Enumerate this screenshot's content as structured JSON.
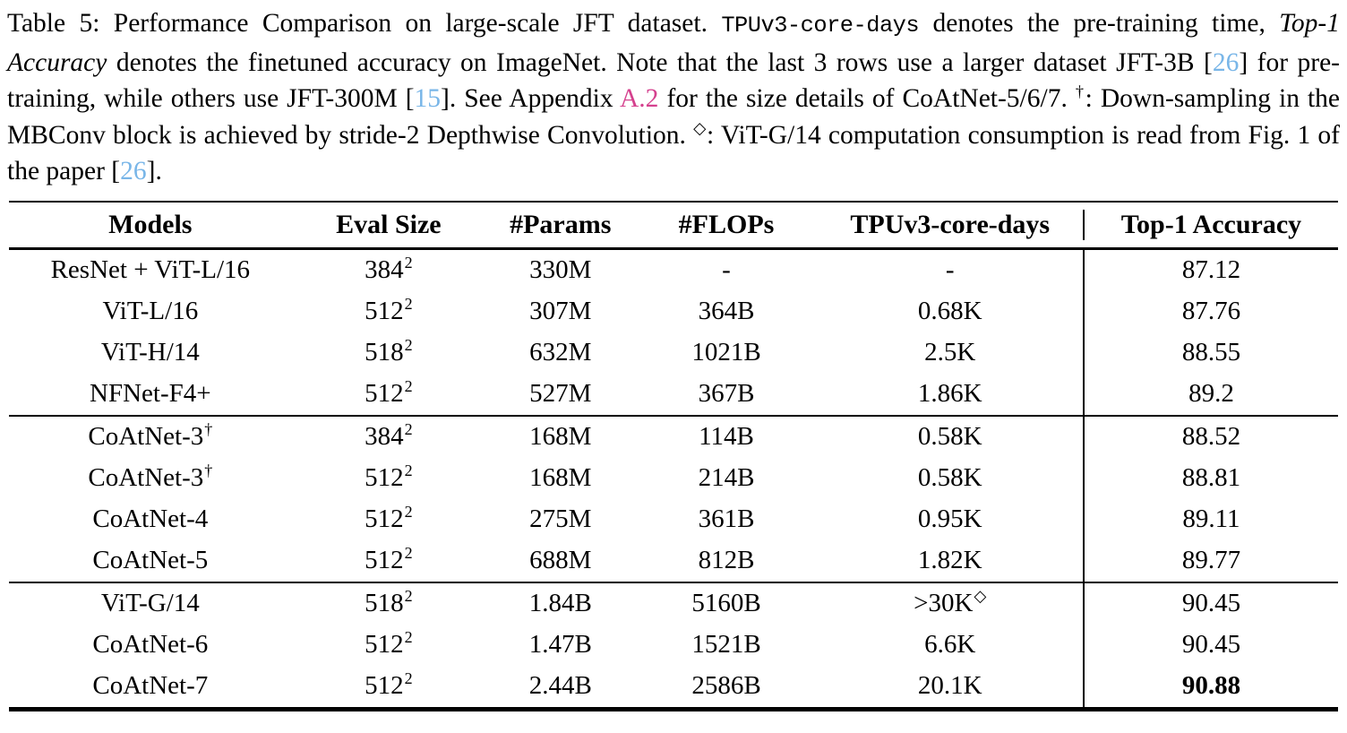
{
  "colors": {
    "link_blue": "#79b6e8",
    "link_pink": "#d5418e",
    "text": "#000000",
    "background": "#ffffff",
    "rule": "#000000"
  },
  "caption": {
    "segments": [
      {
        "t": "Table 5: Performance Comparison on large-scale JFT dataset. ",
        "s": "normal"
      },
      {
        "t": "TPUv3-core-days",
        "s": "mono"
      },
      {
        "t": " denotes the pre-training time, ",
        "s": "normal"
      },
      {
        "t": "Top-1 Accuracy",
        "s": "italic"
      },
      {
        "t": " denotes the finetuned accuracy on ImageNet. Note that the last 3 rows use a larger dataset JFT-3B [",
        "s": "normal"
      },
      {
        "t": "26",
        "s": "link-blue"
      },
      {
        "t": "] for pre-training, while others use JFT-300M [",
        "s": "normal"
      },
      {
        "t": "15",
        "s": "link-blue"
      },
      {
        "t": "]. See Appendix ",
        "s": "normal"
      },
      {
        "t": "A.2",
        "s": "link-pink"
      },
      {
        "t": " for the size details of CoAtNet-5/6/7. ",
        "s": "normal"
      },
      {
        "t": "†",
        "s": "sup"
      },
      {
        "t": ": Down-sampling in the MBConv block is achieved by stride-2 Depthwise Convolution. ",
        "s": "normal"
      },
      {
        "t": "◇",
        "s": "sup"
      },
      {
        "t": ": ViT-G/14 computation consumption is read from Fig. 1 of the paper [",
        "s": "normal"
      },
      {
        "t": "26",
        "s": "link-blue"
      },
      {
        "t": "].",
        "s": "normal"
      }
    ]
  },
  "table": {
    "headers": [
      "Models",
      "Eval Size",
      "#Params",
      "#FLOPs",
      "TPUv3-core-days",
      "Top-1 Accuracy"
    ],
    "groups": [
      {
        "rows": [
          {
            "model": "ResNet + ViT-L/16",
            "model_sup": "",
            "eval": "384",
            "eval_sup": "2",
            "params": "330M",
            "flops": "-",
            "tpu": "-",
            "tpu_sup": "",
            "acc": "87.12",
            "acc_bold": false
          },
          {
            "model": "ViT-L/16",
            "model_sup": "",
            "eval": "512",
            "eval_sup": "2",
            "params": "307M",
            "flops": "364B",
            "tpu": "0.68K",
            "tpu_sup": "",
            "acc": "87.76",
            "acc_bold": false
          },
          {
            "model": "ViT-H/14",
            "model_sup": "",
            "eval": "518",
            "eval_sup": "2",
            "params": "632M",
            "flops": "1021B",
            "tpu": "2.5K",
            "tpu_sup": "",
            "acc": "88.55",
            "acc_bold": false
          },
          {
            "model": "NFNet-F4+",
            "model_sup": "",
            "eval": "512",
            "eval_sup": "2",
            "params": "527M",
            "flops": "367B",
            "tpu": "1.86K",
            "tpu_sup": "",
            "acc": "89.2",
            "acc_bold": false
          }
        ]
      },
      {
        "rows": [
          {
            "model": "CoAtNet-3",
            "model_sup": "†",
            "eval": "384",
            "eval_sup": "2",
            "params": "168M",
            "flops": "114B",
            "tpu": "0.58K",
            "tpu_sup": "",
            "acc": "88.52",
            "acc_bold": false
          },
          {
            "model": "CoAtNet-3",
            "model_sup": "†",
            "eval": "512",
            "eval_sup": "2",
            "params": "168M",
            "flops": "214B",
            "tpu": "0.58K",
            "tpu_sup": "",
            "acc": "88.81",
            "acc_bold": false
          },
          {
            "model": "CoAtNet-4",
            "model_sup": "",
            "eval": "512",
            "eval_sup": "2",
            "params": "275M",
            "flops": "361B",
            "tpu": "0.95K",
            "tpu_sup": "",
            "acc": "89.11",
            "acc_bold": false
          },
          {
            "model": "CoAtNet-5",
            "model_sup": "",
            "eval": "512",
            "eval_sup": "2",
            "params": "688M",
            "flops": "812B",
            "tpu": "1.82K",
            "tpu_sup": "",
            "acc": "89.77",
            "acc_bold": false
          }
        ]
      },
      {
        "rows": [
          {
            "model": "ViT-G/14",
            "model_sup": "",
            "eval": "518",
            "eval_sup": "2",
            "params": "1.84B",
            "flops": "5160B",
            "tpu": ">30K",
            "tpu_sup": "◇",
            "acc": "90.45",
            "acc_bold": false
          },
          {
            "model": "CoAtNet-6",
            "model_sup": "",
            "eval": "512",
            "eval_sup": "2",
            "params": "1.47B",
            "flops": "1521B",
            "tpu": "6.6K",
            "tpu_sup": "",
            "acc": "90.45",
            "acc_bold": false
          },
          {
            "model": "CoAtNet-7",
            "model_sup": "",
            "eval": "512",
            "eval_sup": "2",
            "params": "2.44B",
            "flops": "2586B",
            "tpu": "20.1K",
            "tpu_sup": "",
            "acc": "90.88",
            "acc_bold": true
          }
        ]
      }
    ]
  }
}
